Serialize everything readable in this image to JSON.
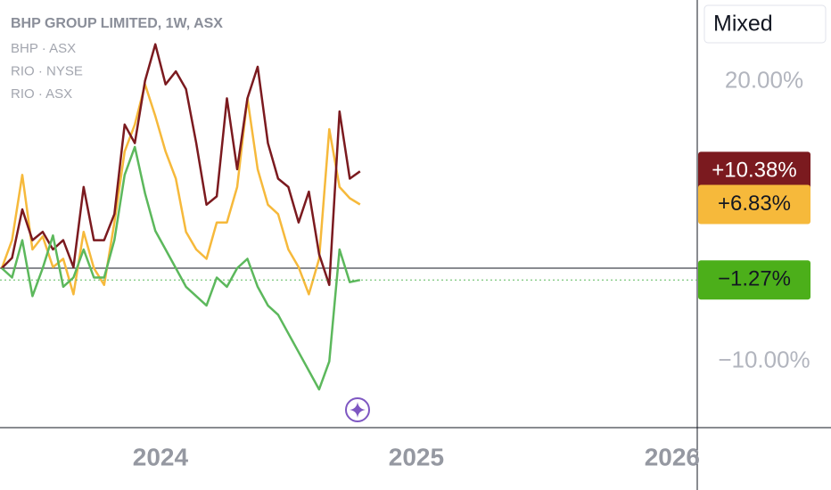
{
  "chart_data": {
    "type": "line",
    "title": "BHP GROUP LIMITED, 1W, ASX",
    "mode": "Mixed",
    "x": [
      2023.38,
      2023.42,
      2023.46,
      2023.5,
      2023.54,
      2023.58,
      2023.62,
      2023.66,
      2023.7,
      2023.74,
      2023.78,
      2023.82,
      2023.86,
      2023.9,
      2023.94,
      2023.98,
      2024.02,
      2024.06,
      2024.1,
      2024.14,
      2024.18,
      2024.22,
      2024.26,
      2024.3,
      2024.34,
      2024.38,
      2024.42,
      2024.46,
      2024.5,
      2024.54,
      2024.58,
      2024.62,
      2024.66,
      2024.7,
      2024.74,
      2024.78
    ],
    "series": [
      {
        "name": "BHP · ASX",
        "color": "#5cb85c",
        "label_color": "#4caf1a",
        "last_label": "−1.27%",
        "values": [
          0,
          -1,
          3,
          -3,
          0,
          3.5,
          -2,
          -1,
          2,
          -1,
          -1,
          3,
          10,
          13,
          8,
          4,
          2,
          0,
          -2,
          -3,
          -4,
          -1,
          -2,
          0,
          1,
          -2,
          -4,
          -5,
          -7,
          -9,
          -11,
          -13,
          -10,
          2,
          -1.5,
          -1.27
        ]
      },
      {
        "name": "RIO · NYSE",
        "color": "#7b1a1f",
        "label_color": "#7b1a1f",
        "last_label": "+10.38%",
        "values": [
          0,
          1.1,
          6.3,
          3,
          3.9,
          2,
          3,
          0.1,
          8.7,
          3,
          3,
          5.8,
          15.4,
          13.4,
          20.1,
          24,
          19.7,
          21.1,
          19.2,
          13.4,
          6.8,
          7.7,
          18.2,
          10.6,
          18.2,
          21.6,
          13.4,
          9.6,
          8.7,
          4.9,
          8.2,
          1.5,
          -1.8,
          16.8,
          9.6,
          10.38
        ]
      },
      {
        "name": "RIO · ASX",
        "color": "#f6b93b",
        "label_color": "#f6b93b",
        "last_label": "+6.83%",
        "values": [
          0,
          3,
          10,
          2,
          3.4,
          0.1,
          1,
          -2.8,
          3.9,
          0,
          -1.8,
          4.9,
          12.5,
          15.4,
          19.7,
          16.3,
          12.5,
          9.6,
          3.9,
          2,
          1,
          4.9,
          4.9,
          8.7,
          18.2,
          10.6,
          6.8,
          5.8,
          2,
          0.1,
          -2.8,
          1,
          14.9,
          8.7,
          7.5,
          6.83
        ]
      }
    ],
    "xlim": [
      2023.373,
      2026.098
    ],
    "xticks": [
      2024,
      2025,
      2026
    ],
    "ylim": [
      -17.1,
      28.75
    ],
    "yticks": [
      {
        "value": 20,
        "label": "20.00%"
      },
      {
        "value": -10,
        "label": "−10.00%"
      }
    ]
  }
}
